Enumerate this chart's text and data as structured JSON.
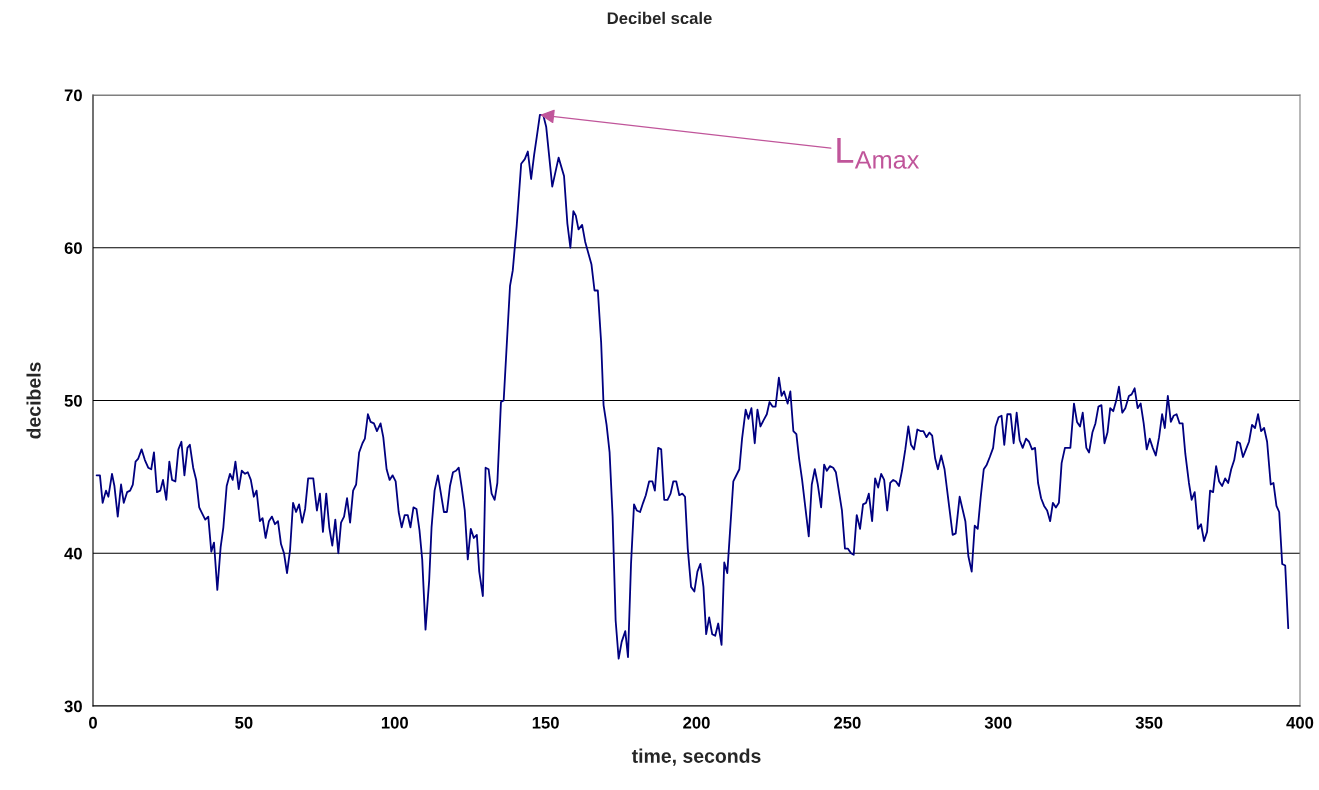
{
  "chart_data": {
    "type": "line",
    "title": "Decibel scale",
    "xlabel": "time, seconds",
    "ylabel": "decibels",
    "xlim": [
      0,
      400
    ],
    "xticks": [
      0,
      50,
      100,
      150,
      200,
      250,
      300,
      350,
      400
    ],
    "ylim": [
      30,
      70
    ],
    "yticks": [
      30,
      40,
      50,
      60,
      70
    ],
    "grid": "y",
    "annotations": [
      {
        "text": "L$_{Amax}$",
        "x": 148.1,
        "y": 68.7
      }
    ],
    "series": [
      {
        "color": "#000080",
        "x": [
          1.2,
          2.3,
          3.2,
          4.3,
          5.1,
          6.3,
          7.1,
          8.2,
          9.3,
          10.2,
          11.3,
          12.3,
          13.2,
          14.1,
          15.0,
          16.1,
          17.2,
          18.3,
          19.3,
          20.2,
          21.2,
          22.3,
          23.2,
          24.3,
          25.3,
          26.2,
          27.3,
          28.3,
          29.3,
          30.3,
          31.3,
          32.1,
          33.2,
          34.2,
          35.2,
          36.2,
          37.2,
          38.2,
          39.2,
          40.1,
          41.2,
          42.3,
          43.2,
          44.3,
          45.4,
          46.3,
          47.2,
          48.3,
          49.3,
          50.4,
          51.3,
          52.3,
          53.3,
          54.2,
          55.3,
          56.2,
          57.2,
          58.3,
          59.3,
          60.3,
          61.3,
          62.3,
          63.3,
          64.3,
          65.3,
          66.3,
          67.3,
          68.3,
          69.3,
          70.3,
          71.3,
          73.0,
          74.2,
          75.2,
          76.2,
          77.3,
          78.3,
          79.3,
          80.3,
          81.3,
          82.2,
          83.2,
          84.2,
          85.2,
          86.2,
          87.2,
          88.2,
          89.3,
          90.1,
          91.1,
          92.0,
          93.1,
          94.1,
          95.3,
          96.2,
          97.3,
          98.3,
          99.3,
          100.3,
          101.3,
          102.3,
          103.3,
          104.3,
          105.2,
          106.2,
          107.2,
          108.2,
          109.1,
          110.2,
          111.4,
          112.2,
          113.2,
          114.3,
          115.3,
          116.3,
          117.3,
          118.3,
          119.3,
          120.3,
          121.2,
          122.2,
          123.2,
          124.2,
          125.2,
          126.2,
          127.2,
          128.0,
          129.2,
          130.1,
          131.1,
          132.1,
          133.1,
          134.0,
          135.2,
          136.1,
          137.3,
          138.2,
          139.1,
          140.4,
          141.9,
          143.1,
          144.1,
          145.2,
          146.2,
          147.1,
          148.1,
          149.2,
          150.2,
          152.2,
          153.3,
          154.3,
          156.1,
          157.2,
          158.2,
          159.2,
          160.0,
          160.9,
          162.1,
          163.1,
          165.2,
          166.2,
          167.3,
          168.4,
          169.2,
          170.2,
          171.2,
          172.2,
          173.2,
          174.2,
          175.2,
          176.4,
          177.3,
          178.3,
          179.3,
          180.2,
          181.3,
          182.3,
          183.2,
          184.3,
          185.4,
          186.2,
          187.3,
          188.3,
          189.3,
          190.4,
          191.4,
          192.3,
          193.3,
          194.3,
          195.3,
          196.2,
          197.1,
          198.2,
          199.3,
          200.3,
          201.3,
          202.3,
          203.2,
          204.2,
          205.2,
          206.2,
          207.2,
          208.3,
          209.2,
          210.2,
          212.2,
          214.2,
          215.1,
          216.3,
          217.2,
          218.2,
          219.3,
          220.2,
          221.2,
          222.2,
          223.3,
          224.2,
          225.2,
          226.2,
          227.3,
          228.2,
          229.0,
          230.2,
          231.1,
          232.1,
          233.1,
          234.0,
          235.0,
          237.2,
          238.2,
          239.2,
          240.2,
          241.3,
          242.3,
          243.2,
          244.2,
          245.3,
          246.2,
          248.2,
          249.2,
          250.2,
          251.2,
          252.1,
          253.1,
          254.2,
          255.2,
          256.2,
          257.1,
          258.2,
          259.2,
          260.2,
          261.2,
          262.2,
          263.2,
          264.2,
          265.2,
          266.1,
          267.1,
          268.1,
          269.2,
          270.2,
          271.1,
          272.1,
          273.2,
          274.2,
          275.2,
          276.2,
          277.2,
          278.1,
          279.1,
          280.0,
          281.1,
          282.2,
          284.9,
          285.9,
          287.2,
          289.1,
          290.1,
          291.2,
          292.2,
          293.2,
          294.2,
          295.2,
          296.2,
          297.2,
          298.3,
          299.1,
          300.1,
          301.1,
          302.0,
          303.0,
          304.1,
          305.1,
          306.1,
          307.1,
          308.1,
          309.2,
          310.2,
          311.2,
          312.2,
          313.2,
          314.2,
          315.2,
          316.2,
          317.2,
          318.1,
          319.1,
          320.1,
          321.0,
          322.1,
          323.9,
          325.1,
          326.1,
          327.1,
          328.0,
          329.2,
          330.1,
          331.2,
          332.2,
          333.2,
          334.2,
          335.2,
          336.2,
          337.1,
          338.1,
          339.1,
          340.0,
          341.1,
          342.1,
          343.3,
          344.2,
          345.2,
          346.2,
          347.2,
          348.2,
          349.2,
          350.2,
          351.2,
          352.2,
          353.3,
          354.3,
          355.2,
          356.2,
          357.2,
          358.1,
          359.1,
          360.1,
          361.1,
          362.0,
          363.2,
          364.1,
          365.1,
          366.2,
          367.2,
          368.2,
          369.2,
          370.2,
          371.2,
          372.2,
          373.2,
          374.2,
          375.2,
          376.2,
          377.2,
          378.2,
          379.2,
          380.1,
          381.1,
          382.1,
          383.1,
          384.1,
          385.1,
          386.1,
          387.1,
          388.1,
          389.1,
          390.3,
          391.2,
          392.2,
          393.1,
          394.1,
          395.1,
          396.1
        ],
        "values": [
          45.1,
          45.1,
          43.3,
          44.1,
          43.7,
          45.2,
          44.4,
          42.4,
          44.5,
          43.3,
          44.0,
          44.1,
          44.5,
          46.0,
          46.2,
          46.8,
          46.1,
          45.6,
          45.5,
          46.6,
          44.0,
          44.1,
          44.8,
          43.5,
          46.0,
          44.8,
          44.7,
          46.8,
          47.3,
          45.1,
          46.9,
          47.1,
          45.6,
          44.8,
          43.0,
          42.6,
          42.2,
          42.4,
          40.1,
          40.7,
          37.6,
          40.4,
          41.7,
          44.4,
          45.2,
          44.8,
          46.0,
          44.2,
          45.4,
          45.2,
          45.3,
          44.8,
          43.7,
          44.1,
          42.1,
          42.3,
          41.0,
          42.1,
          42.4,
          41.9,
          42.1,
          40.6,
          40.0,
          38.7,
          40.2,
          43.3,
          42.7,
          43.2,
          42.0,
          42.9,
          44.9,
          44.9,
          42.8,
          43.9,
          41.4,
          43.9,
          41.7,
          40.5,
          42.2,
          40.0,
          42.0,
          42.4,
          43.6,
          42.0,
          44.1,
          44.5,
          46.6,
          47.2,
          47.5,
          49.1,
          48.6,
          48.5,
          48.0,
          48.5,
          47.6,
          45.5,
          44.8,
          45.1,
          44.7,
          42.7,
          41.7,
          42.5,
          42.5,
          41.7,
          43.0,
          42.9,
          41.5,
          39.6,
          35.0,
          38.2,
          41.7,
          44.1,
          45.1,
          43.9,
          42.7,
          42.7,
          44.4,
          45.3,
          45.4,
          45.6,
          44.3,
          42.8,
          39.6,
          41.6,
          41.0,
          41.2,
          38.8,
          37.2,
          45.6,
          45.5,
          43.9,
          43.5,
          44.6,
          49.9,
          50.0,
          54.3,
          57.5,
          58.5,
          61.4,
          65.5,
          65.8,
          66.3,
          64.5,
          66.1,
          67.3,
          68.7,
          68.7,
          67.9,
          64.0,
          65.0,
          65.9,
          64.7,
          61.6,
          60.0,
          62.4,
          62.1,
          61.2,
          61.5,
          60.4,
          58.9,
          57.2,
          57.2,
          53.8,
          49.7,
          48.4,
          46.6,
          42.4,
          35.6,
          33.1,
          34.2,
          34.9,
          33.2,
          39.3,
          43.2,
          42.8,
          42.7,
          43.3,
          43.8,
          44.7,
          44.7,
          44.1,
          46.9,
          46.8,
          43.5,
          43.5,
          43.9,
          44.7,
          44.7,
          43.8,
          43.9,
          43.7,
          40.3,
          37.8,
          37.5,
          38.8,
          39.3,
          37.8,
          34.7,
          35.8,
          34.7,
          34.6,
          35.4,
          34.0,
          39.4,
          38.7,
          44.7,
          45.5,
          47.5,
          49.4,
          48.8,
          49.5,
          47.2,
          49.4,
          48.3,
          48.7,
          49.1,
          49.9,
          49.6,
          49.6,
          51.5,
          50.3,
          50.6,
          49.8,
          50.6,
          48.0,
          47.8,
          46.2,
          44.8,
          41.1,
          44.5,
          45.5,
          44.5,
          43.0,
          45.8,
          45.4,
          45.7,
          45.6,
          45.3,
          42.8,
          40.3,
          40.3,
          40.0,
          39.9,
          42.5,
          41.6,
          43.2,
          43.3,
          43.9,
          42.1,
          44.9,
          44.3,
          45.2,
          44.8,
          42.8,
          44.6,
          44.8,
          44.7,
          44.4,
          45.4,
          46.8,
          48.3,
          47.1,
          46.8,
          48.1,
          48.0,
          48.0,
          47.6,
          47.9,
          47.7,
          46.2,
          45.5,
          46.4,
          45.5,
          41.2,
          41.3,
          43.7,
          42.1,
          39.8,
          38.8,
          41.8,
          41.6,
          43.7,
          45.5,
          45.8,
          46.3,
          46.9,
          48.3,
          48.9,
          49.0,
          47.1,
          49.1,
          49.1,
          47.2,
          49.2,
          47.4,
          46.9,
          47.5,
          47.3,
          46.8,
          46.9,
          44.6,
          43.6,
          43.1,
          42.8,
          42.1,
          43.3,
          43.0,
          43.3,
          45.9,
          46.9,
          46.9,
          49.8,
          48.6,
          48.3,
          49.2,
          46.9,
          46.6,
          47.9,
          48.5,
          49.6,
          49.7,
          47.2,
          47.9,
          49.5,
          49.3,
          50.0,
          50.9,
          49.2,
          49.5,
          50.3,
          50.4,
          50.8,
          49.5,
          49.8,
          48.5,
          46.8,
          47.5,
          46.9,
          46.4,
          47.6,
          49.1,
          48.2,
          50.3,
          48.6,
          49.0,
          49.1,
          48.5,
          48.5,
          46.5,
          44.6,
          43.5,
          44.0,
          41.6,
          41.9,
          40.8,
          41.4,
          44.1,
          44.0,
          45.7,
          44.7,
          44.4,
          44.9,
          44.6,
          45.5,
          46.1,
          47.3,
          47.2,
          46.3,
          46.8,
          47.3,
          48.4,
          48.2,
          49.1,
          48.0,
          48.2,
          47.3,
          44.5,
          44.6,
          43.1,
          42.7,
          39.3,
          39.2,
          35.1
        ]
      }
    ]
  }
}
